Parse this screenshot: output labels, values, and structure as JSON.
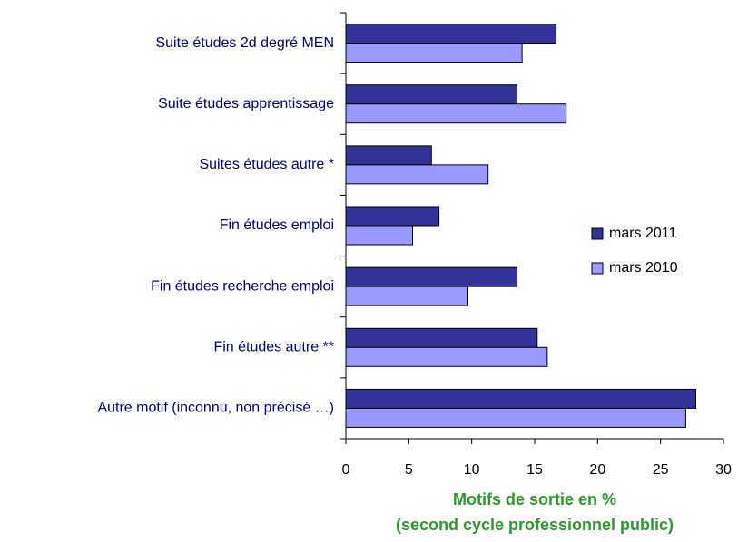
{
  "chart_data": {
    "type": "hbar",
    "categories": [
      "Suite études 2d degré MEN",
      "Suite études apprentissage",
      "Suites études autre *",
      "Fin études emploi",
      "Fin études recherche emploi",
      "Fin études autre **",
      "Autre motif (inconnu, non précisé …)"
    ],
    "series": [
      {
        "name": "mars 2011",
        "color": "#333399",
        "values": [
          16.7,
          13.6,
          6.8,
          7.4,
          13.6,
          15.2,
          27.8
        ]
      },
      {
        "name": "mars 2010",
        "color": "#9999ff",
        "values": [
          14.0,
          17.5,
          11.3,
          5.3,
          9.7,
          16.0,
          27.0
        ]
      }
    ],
    "xlim": [
      0,
      30
    ],
    "xticks": [
      0,
      5,
      10,
      15,
      20,
      25,
      30
    ],
    "xlabel": [
      "Motifs de sortie en %",
      "(second cycle professionnel public)"
    ],
    "legend": "right"
  }
}
